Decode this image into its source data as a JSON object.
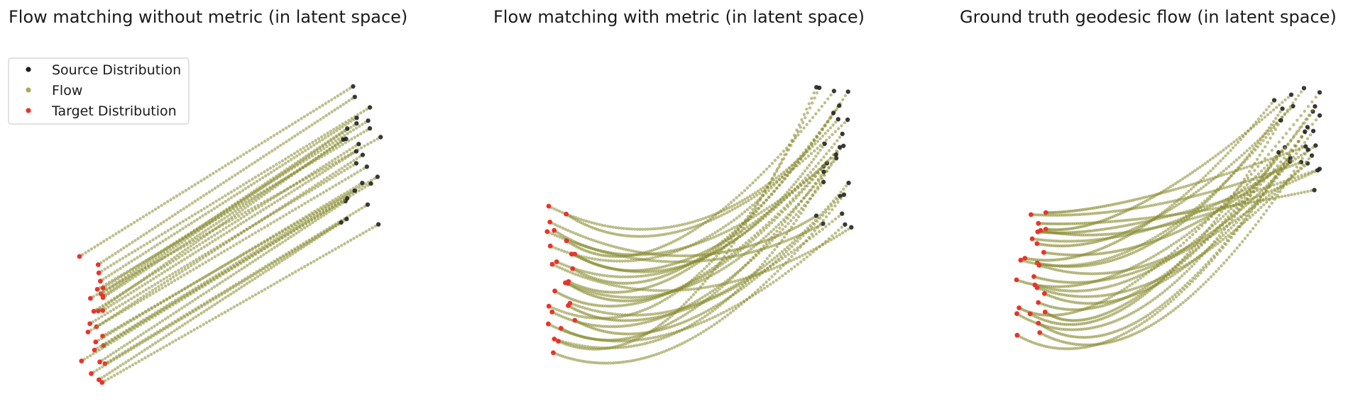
{
  "figure": {
    "legend": {
      "placement": "upper-left",
      "entries": [
        {
          "label": "Source Distribution",
          "color": "#1f1f1f"
        },
        {
          "label": "Flow",
          "color": "#a9ad5a"
        },
        {
          "label": "Target Distribution",
          "color": "#e8342a"
        }
      ]
    }
  },
  "chart_data": [
    {
      "type": "scatter",
      "title": "Flow matching without metric (in latent space)",
      "xlabel": "",
      "ylabel": "",
      "axes_visible": false,
      "grid": false,
      "path_shape": "straight",
      "trajectories": 26,
      "colors": {
        "source": "#1f1f1f",
        "flow": "#878a2e",
        "target": "#e8342a"
      }
    },
    {
      "type": "scatter",
      "title": "Flow matching with metric (in latent space)",
      "xlabel": "",
      "ylabel": "",
      "axes_visible": false,
      "grid": false,
      "path_shape": "curved",
      "trajectories": 26,
      "colors": {
        "source": "#1f1f1f",
        "flow": "#878a2e",
        "target": "#e8342a"
      }
    },
    {
      "type": "scatter",
      "title": "Ground truth geodesic flow (in latent space)",
      "xlabel": "",
      "ylabel": "",
      "axes_visible": false,
      "grid": false,
      "path_shape": "curved",
      "trajectories": 26,
      "colors": {
        "source": "#1f1f1f",
        "flow": "#878a2e",
        "target": "#e8342a"
      }
    }
  ]
}
